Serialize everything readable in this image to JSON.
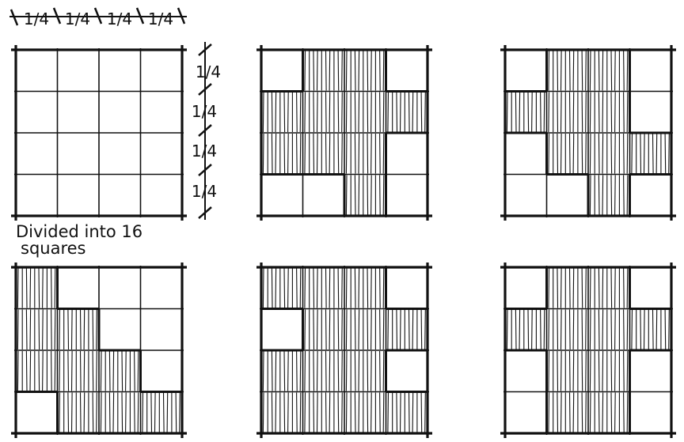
{
  "dimensions": {
    "top_labels": [
      "1/4",
      "1/4",
      "1/4",
      "1/4"
    ],
    "side_labels": [
      "1/4",
      "1/4",
      "1/4",
      "1/4"
    ]
  },
  "caption": {
    "line1": "Divided into 16",
    "line2": "squares"
  },
  "grid": {
    "rows": 4,
    "cols": 4,
    "ink_color": "#111111"
  },
  "patterns": [
    {
      "name": "plain-grid",
      "filled": []
    },
    {
      "name": "pattern-top-middle",
      "filled": [
        [
          0,
          1
        ],
        [
          0,
          2
        ],
        [
          1,
          0
        ],
        [
          1,
          1
        ],
        [
          1,
          2
        ],
        [
          1,
          3
        ],
        [
          2,
          0
        ],
        [
          2,
          1
        ],
        [
          2,
          2
        ],
        [
          3,
          2
        ]
      ]
    },
    {
      "name": "pattern-top-right",
      "filled": [
        [
          0,
          1
        ],
        [
          0,
          2
        ],
        [
          1,
          0
        ],
        [
          1,
          1
        ],
        [
          1,
          2
        ],
        [
          2,
          1
        ],
        [
          2,
          2
        ],
        [
          2,
          3
        ],
        [
          3,
          2
        ]
      ]
    },
    {
      "name": "pattern-bottom-left",
      "filled": [
        [
          0,
          0
        ],
        [
          1,
          0
        ],
        [
          1,
          1
        ],
        [
          2,
          0
        ],
        [
          2,
          1
        ],
        [
          2,
          2
        ],
        [
          3,
          1
        ],
        [
          3,
          2
        ],
        [
          3,
          3
        ]
      ]
    },
    {
      "name": "pattern-bottom-middle",
      "filled": [
        [
          0,
          0
        ],
        [
          0,
          1
        ],
        [
          0,
          2
        ],
        [
          1,
          1
        ],
        [
          1,
          2
        ],
        [
          1,
          3
        ],
        [
          2,
          0
        ],
        [
          2,
          1
        ],
        [
          2,
          2
        ],
        [
          3,
          0
        ],
        [
          3,
          1
        ],
        [
          3,
          2
        ],
        [
          3,
          3
        ]
      ]
    },
    {
      "name": "pattern-bottom-right",
      "filled": [
        [
          0,
          1
        ],
        [
          0,
          2
        ],
        [
          1,
          0
        ],
        [
          1,
          1
        ],
        [
          1,
          2
        ],
        [
          1,
          3
        ],
        [
          2,
          1
        ],
        [
          2,
          2
        ],
        [
          3,
          1
        ],
        [
          3,
          2
        ]
      ]
    }
  ]
}
